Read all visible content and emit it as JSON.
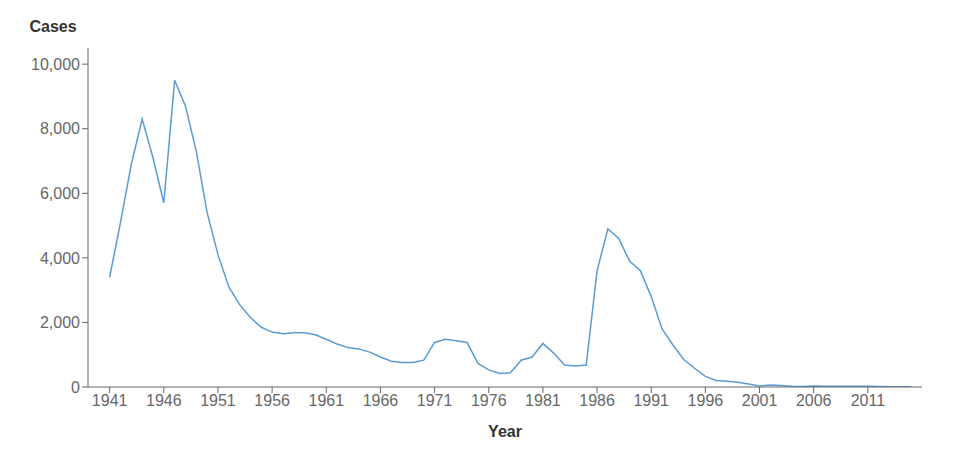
{
  "chart_data": {
    "type": "line",
    "xlabel": "Year",
    "ylabel": "Cases",
    "color": "#5b9bd5",
    "grid": false,
    "xlim": [
      1939,
      2016
    ],
    "xticks": [
      1941,
      1946,
      1951,
      1956,
      1961,
      1966,
      1971,
      1976,
      1981,
      1986,
      1991,
      1996,
      2001,
      2006,
      2011
    ],
    "ylim": [
      0,
      10500
    ],
    "yticks": [
      0,
      {
        "value": 2000,
        "label": "2,000"
      },
      {
        "value": 4000,
        "label": "4,000"
      },
      {
        "value": 6000,
        "label": "6,000"
      },
      {
        "value": 8000,
        "label": "8,000"
      },
      {
        "value": 10000,
        "label": "10,000"
      }
    ],
    "x": [
      1941,
      1942,
      1943,
      1944,
      1945,
      1946,
      1947,
      1948,
      1949,
      1950,
      1951,
      1952,
      1953,
      1954,
      1955,
      1956,
      1957,
      1958,
      1959,
      1960,
      1961,
      1962,
      1963,
      1964,
      1965,
      1966,
      1967,
      1968,
      1969,
      1970,
      1971,
      1972,
      1973,
      1974,
      1975,
      1976,
      1977,
      1978,
      1979,
      1980,
      1981,
      1982,
      1983,
      1984,
      1985,
      1986,
      1987,
      1988,
      1989,
      1990,
      1991,
      1992,
      1993,
      1994,
      1995,
      1996,
      1997,
      1998,
      1999,
      2000,
      2001,
      2002,
      2003,
      2004,
      2005,
      2006,
      2007,
      2008,
      2009,
      2010,
      2011,
      2012,
      2013,
      2014,
      2015
    ],
    "values": [
      3400,
      5100,
      6900,
      8300,
      7100,
      5700,
      9500,
      8700,
      7300,
      5400,
      4100,
      3100,
      2550,
      2150,
      1850,
      1700,
      1650,
      1680,
      1680,
      1620,
      1480,
      1330,
      1220,
      1180,
      1080,
      930,
      800,
      760,
      760,
      830,
      1380,
      1480,
      1430,
      1380,
      730,
      530,
      420,
      440,
      830,
      930,
      1350,
      1050,
      680,
      650,
      680,
      3600,
      4900,
      4600,
      3900,
      3600,
      2800,
      1800,
      1300,
      850,
      580,
      330,
      200,
      180,
      150,
      95,
      30,
      60,
      50,
      27,
      14,
      28,
      20,
      22,
      25,
      20,
      22,
      13,
      4,
      8,
      9
    ]
  }
}
